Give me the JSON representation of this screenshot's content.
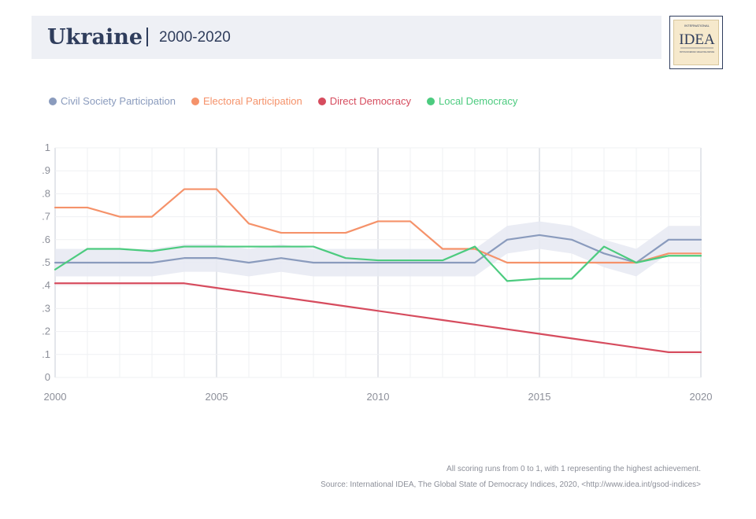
{
  "header": {
    "title": "Ukraine",
    "subtitle": "2000-2020"
  },
  "logo": {
    "text_top": "INTERNATIONAL",
    "text_main": "IDEA",
    "text_bottom": "INSTITUTE FOR DEMOCRACY AND ELECTORAL ASSISTANCE"
  },
  "colors": {
    "civil": "#8a9bbd",
    "electoral": "#f5926a",
    "direct": "#d64c5e",
    "local": "#4ccb7f",
    "band": "#e6e9f2",
    "grid": "#eff0f3"
  },
  "chart_data": {
    "type": "line",
    "x": [
      2000,
      2001,
      2002,
      2003,
      2004,
      2005,
      2006,
      2007,
      2008,
      2009,
      2010,
      2011,
      2012,
      2013,
      2014,
      2015,
      2016,
      2017,
      2018,
      2019,
      2020
    ],
    "series": [
      {
        "name": "Civil Society Participation",
        "color": "#8a9bbd",
        "values": [
          0.5,
          0.5,
          0.5,
          0.5,
          0.52,
          0.52,
          0.5,
          0.52,
          0.5,
          0.5,
          0.5,
          0.5,
          0.5,
          0.5,
          0.6,
          0.62,
          0.6,
          0.54,
          0.5,
          0.6,
          0.6
        ],
        "band_lower": [
          0.44,
          0.44,
          0.44,
          0.44,
          0.46,
          0.46,
          0.44,
          0.46,
          0.44,
          0.44,
          0.44,
          0.44,
          0.44,
          0.44,
          0.54,
          0.56,
          0.54,
          0.48,
          0.44,
          0.54,
          0.54
        ],
        "band_upper": [
          0.56,
          0.56,
          0.56,
          0.56,
          0.58,
          0.58,
          0.56,
          0.58,
          0.56,
          0.56,
          0.56,
          0.56,
          0.56,
          0.56,
          0.66,
          0.68,
          0.66,
          0.6,
          0.56,
          0.66,
          0.66
        ]
      },
      {
        "name": "Electoral Participation",
        "color": "#f5926a",
        "values": [
          0.74,
          0.74,
          0.7,
          0.7,
          0.82,
          0.82,
          0.67,
          0.63,
          0.63,
          0.63,
          0.68,
          0.68,
          0.56,
          0.56,
          0.5,
          0.5,
          0.5,
          0.5,
          0.5,
          0.54,
          0.54
        ]
      },
      {
        "name": "Direct Democracy",
        "color": "#d64c5e",
        "values": [
          0.41,
          0.41,
          0.41,
          0.41,
          0.41,
          0.39,
          0.37,
          0.35,
          0.33,
          0.31,
          0.29,
          0.27,
          0.25,
          0.23,
          0.21,
          0.19,
          0.17,
          0.15,
          0.13,
          0.11,
          0.11
        ]
      },
      {
        "name": "Local Democracy",
        "color": "#4ccb7f",
        "values": [
          0.47,
          0.56,
          0.56,
          0.55,
          0.57,
          0.57,
          0.57,
          0.57,
          0.57,
          0.52,
          0.51,
          0.51,
          0.51,
          0.57,
          0.42,
          0.43,
          0.43,
          0.57,
          0.5,
          0.53,
          0.53
        ]
      }
    ],
    "ylim": [
      0,
      1
    ],
    "y_ticks": [
      "0",
      ".1",
      ".2",
      ".3",
      ".4",
      ".5",
      ".6",
      ".7",
      ".8",
      ".9",
      "1"
    ],
    "x_ticks": [
      "2000",
      "2005",
      "2010",
      "2015",
      "2020"
    ],
    "xlim": [
      2000,
      2020
    ],
    "grid": true,
    "legend": "top-left"
  },
  "footnotes": {
    "line1": "All scoring runs from 0 to 1, with 1 representing the highest achievement.",
    "line2": "Source: International IDEA, The Global State of Democracy Indices, 2020, <http://www.idea.int/gsod-indices>"
  }
}
